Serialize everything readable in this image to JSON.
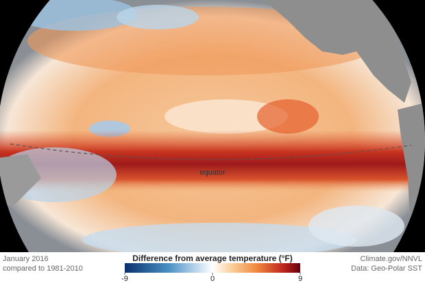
{
  "map": {
    "label": "equator"
  },
  "caption": {
    "date": "January 2016",
    "baseline": "compared to 1981-2010"
  },
  "legend": {
    "title": "Difference from average temperature (°F)",
    "range": [
      -9,
      9
    ],
    "ticks": [
      -9,
      0,
      9
    ]
  },
  "credits": {
    "source": "Climate.gov/NNVL",
    "data": "Data: Geo-Polar SST"
  }
}
